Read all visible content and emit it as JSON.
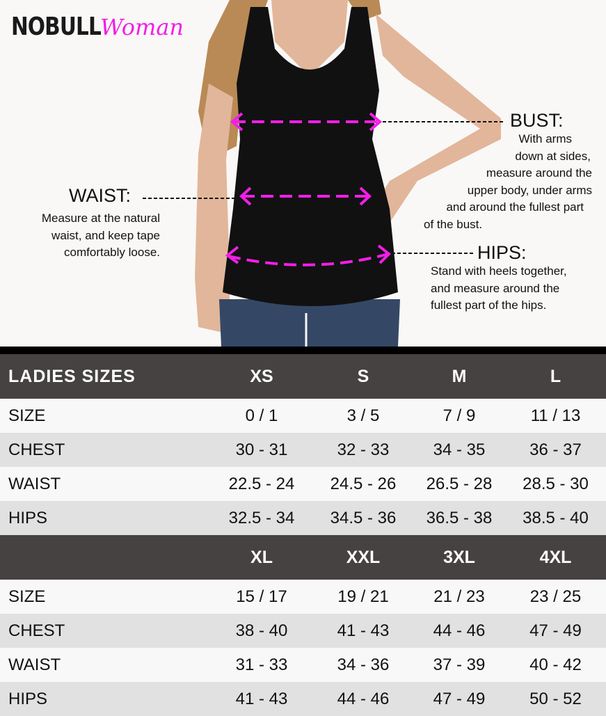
{
  "brand": {
    "name": "NOBULL",
    "sub": "Woman",
    "accent": "#f21ee8"
  },
  "annotations": {
    "bust": {
      "title": "BUST:",
      "lines": [
        "With arms",
        "down at sides,",
        "measure around the",
        "upper body, under arms",
        "and around the fullest part",
        "of the bust."
      ]
    },
    "waist": {
      "title": "WAIST:",
      "lines": [
        "Measure at the natural",
        "waist, and keep tape",
        "comfortably loose."
      ]
    },
    "hips": {
      "title": "HIPS:",
      "lines": [
        "Stand with heels together,",
        "and measure around the",
        "fullest part of the hips."
      ]
    }
  },
  "table1": {
    "header": [
      "LADIES SIZES",
      "XS",
      "S",
      "M",
      "L"
    ],
    "rows": [
      [
        "SIZE",
        "0 / 1",
        "3 / 5",
        "7 / 9",
        "11 / 13"
      ],
      [
        "CHEST",
        "30 - 31",
        "32 - 33",
        "34 - 35",
        "36 - 37"
      ],
      [
        "WAIST",
        "22.5 - 24",
        "24.5 - 26",
        "26.5 - 28",
        "28.5 - 30"
      ],
      [
        "HIPS",
        "32.5 - 34",
        "34.5 - 36",
        "36.5 - 38",
        "38.5 - 40"
      ]
    ]
  },
  "table2": {
    "header": [
      "",
      "XL",
      "XXL",
      "3XL",
      "4XL"
    ],
    "rows": [
      [
        "SIZE",
        "15 / 17",
        "19 / 21",
        "21 / 23",
        "23 / 25"
      ],
      [
        "CHEST",
        "38 - 40",
        "41 - 43",
        "44 - 46",
        "47 - 49"
      ],
      [
        "WAIST",
        "31 - 33",
        "34 - 36",
        "37 - 39",
        "40 - 42"
      ],
      [
        "HIPS",
        "41 - 43",
        "44 - 46",
        "47 - 49",
        "50 - 52"
      ]
    ]
  }
}
